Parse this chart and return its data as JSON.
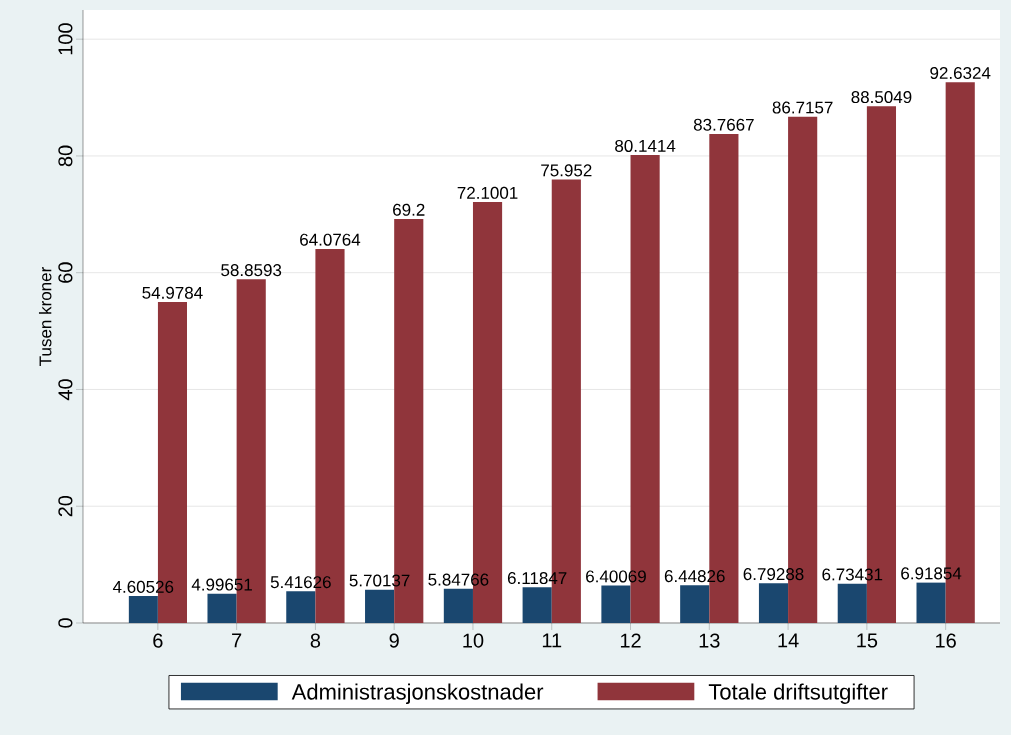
{
  "chart_data": {
    "type": "bar",
    "ylabel": "Tusen kroner",
    "categories": [
      "6",
      "7",
      "8",
      "9",
      "10",
      "11",
      "12",
      "13",
      "14",
      "15",
      "16"
    ],
    "series": [
      {
        "name": "Administrasjonskostnader",
        "color": "#1a476f",
        "values": [
          4.60526,
          4.99651,
          5.41626,
          5.70137,
          5.84766,
          6.11847,
          6.40069,
          6.44826,
          6.79288,
          6.73431,
          6.91854
        ]
      },
      {
        "name": "Totale driftsutgifter",
        "color": "#90353b",
        "values": [
          54.9784,
          58.8593,
          64.0764,
          69.2,
          72.1001,
          75.952,
          80.1414,
          83.7667,
          86.7157,
          88.5049,
          92.6324
        ]
      }
    ],
    "ylim": [
      0,
      105
    ],
    "yticks": [
      0,
      20,
      40,
      60,
      80,
      100
    ],
    "grid": "y",
    "legend": "bottom",
    "data_labels": true
  }
}
